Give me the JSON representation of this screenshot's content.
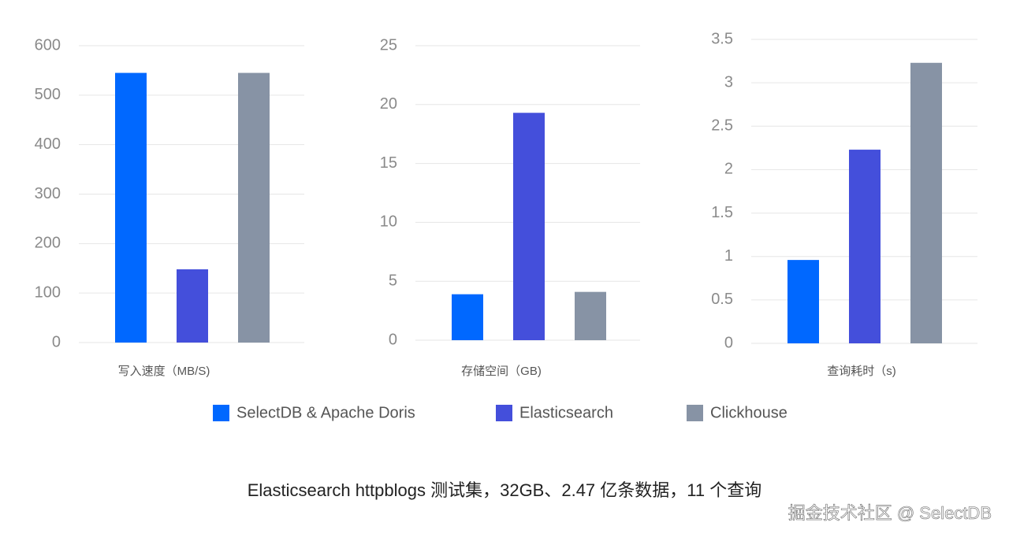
{
  "chart_data": [
    {
      "type": "bar",
      "x_label": "写入速度（MB/S)",
      "values": [
        545,
        148,
        545
      ],
      "ylim": [
        0,
        600
      ],
      "yticks": [
        0,
        100,
        200,
        300,
        400,
        500,
        600
      ],
      "grid": true
    },
    {
      "type": "bar",
      "x_label": "存储空间（GB)",
      "values": [
        3.9,
        19.3,
        4.1
      ],
      "ylim": [
        0,
        25
      ],
      "yticks": [
        0,
        5,
        10,
        15,
        20,
        25
      ],
      "grid": true
    },
    {
      "type": "bar",
      "x_label": "查询耗时（s)",
      "values": [
        0.96,
        2.23,
        3.23
      ],
      "ylim": [
        0,
        3.5
      ],
      "yticks": [
        0,
        0.5,
        1,
        1.5,
        2,
        2.5,
        3,
        3.5
      ],
      "grid": true
    }
  ],
  "legend": [
    {
      "name": "SelectDB & Apache Doris",
      "color": "#0068ff"
    },
    {
      "name": "Elasticsearch",
      "color": "#444fdb"
    },
    {
      "name": "Clickhouse",
      "color": "#8793a5"
    }
  ],
  "caption": "Elasticsearch httpblogs 测试集，32GB、2.47 亿条数据，11 个查询",
  "watermark": "掘金技术社区 @ SelectDB"
}
